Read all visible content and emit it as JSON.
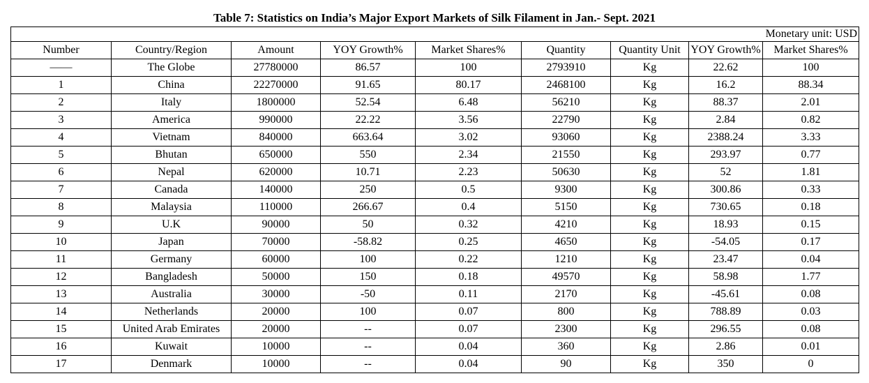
{
  "title": "Table 7: Statistics on India’s Major Export Markets of Silk Filament in Jan.- Sept. 2021",
  "unit_note": "Monetary unit: USD",
  "columns": [
    "Number",
    "Country/Region",
    "Amount",
    "YOY Growth%",
    "Market Shares%",
    "Quantity",
    "Quantity Unit",
    "YOY Growth%",
    "Market Shares%"
  ],
  "globe_row": {
    "number": "——",
    "country": "The Globe",
    "amount": "27780000",
    "yoy": "86.57",
    "share": "100",
    "quantity": "2793910",
    "unit": "Kg",
    "qyoy": "22.62",
    "qshare": "100"
  },
  "rows": [
    {
      "number": "1",
      "country": "China",
      "amount": "22270000",
      "yoy": "91.65",
      "share": "80.17",
      "quantity": "2468100",
      "unit": "Kg",
      "qyoy": "16.2",
      "qshare": "88.34"
    },
    {
      "number": "2",
      "country": "Italy",
      "amount": "1800000",
      "yoy": "52.54",
      "share": "6.48",
      "quantity": "56210",
      "unit": "Kg",
      "qyoy": "88.37",
      "qshare": "2.01"
    },
    {
      "number": "3",
      "country": "America",
      "amount": "990000",
      "yoy": "22.22",
      "share": "3.56",
      "quantity": "22790",
      "unit": "Kg",
      "qyoy": "2.84",
      "qshare": "0.82"
    },
    {
      "number": "4",
      "country": "Vietnam",
      "amount": "840000",
      "yoy": "663.64",
      "share": "3.02",
      "quantity": "93060",
      "unit": "Kg",
      "qyoy": "2388.24",
      "qshare": "3.33"
    },
    {
      "number": "5",
      "country": "Bhutan",
      "amount": "650000",
      "yoy": "550",
      "share": "2.34",
      "quantity": "21550",
      "unit": "Kg",
      "qyoy": "293.97",
      "qshare": "0.77"
    },
    {
      "number": "6",
      "country": "Nepal",
      "amount": "620000",
      "yoy": "10.71",
      "share": "2.23",
      "quantity": "50630",
      "unit": "Kg",
      "qyoy": "52",
      "qshare": "1.81"
    },
    {
      "number": "7",
      "country": "Canada",
      "amount": "140000",
      "yoy": "250",
      "share": "0.5",
      "quantity": "9300",
      "unit": "Kg",
      "qyoy": "300.86",
      "qshare": "0.33"
    },
    {
      "number": "8",
      "country": "Malaysia",
      "amount": "110000",
      "yoy": "266.67",
      "share": "0.4",
      "quantity": "5150",
      "unit": "Kg",
      "qyoy": "730.65",
      "qshare": "0.18"
    },
    {
      "number": "9",
      "country": "U.K",
      "amount": "90000",
      "yoy": "50",
      "share": "0.32",
      "quantity": "4210",
      "unit": "Kg",
      "qyoy": "18.93",
      "qshare": "0.15"
    },
    {
      "number": "10",
      "country": "Japan",
      "amount": "70000",
      "yoy": "-58.82",
      "share": "0.25",
      "quantity": "4650",
      "unit": "Kg",
      "qyoy": "-54.05",
      "qshare": "0.17"
    },
    {
      "number": "11",
      "country": "Germany",
      "amount": "60000",
      "yoy": "100",
      "share": "0.22",
      "quantity": "1210",
      "unit": "Kg",
      "qyoy": "23.47",
      "qshare": "0.04"
    },
    {
      "number": "12",
      "country": "Bangladesh",
      "amount": "50000",
      "yoy": "150",
      "share": "0.18",
      "quantity": "49570",
      "unit": "Kg",
      "qyoy": "58.98",
      "qshare": "1.77"
    },
    {
      "number": "13",
      "country": "Australia",
      "amount": "30000",
      "yoy": "-50",
      "share": "0.11",
      "quantity": "2170",
      "unit": "Kg",
      "qyoy": "-45.61",
      "qshare": "0.08"
    },
    {
      "number": "14",
      "country": "Netherlands",
      "amount": "20000",
      "yoy": "100",
      "share": "0.07",
      "quantity": "800",
      "unit": "Kg",
      "qyoy": "788.89",
      "qshare": "0.03"
    },
    {
      "number": "15",
      "country": "United Arab Emirates",
      "amount": "20000",
      "yoy": "--",
      "share": "0.07",
      "quantity": "2300",
      "unit": "Kg",
      "qyoy": "296.55",
      "qshare": "0.08"
    },
    {
      "number": "16",
      "country": "Kuwait",
      "amount": "10000",
      "yoy": "--",
      "share": "0.04",
      "quantity": "360",
      "unit": "Kg",
      "qyoy": "2.86",
      "qshare": "0.01"
    },
    {
      "number": "17",
      "country": "Denmark",
      "amount": "10000",
      "yoy": "--",
      "share": "0.04",
      "quantity": "90",
      "unit": "Kg",
      "qyoy": "350",
      "qshare": "0"
    }
  ]
}
